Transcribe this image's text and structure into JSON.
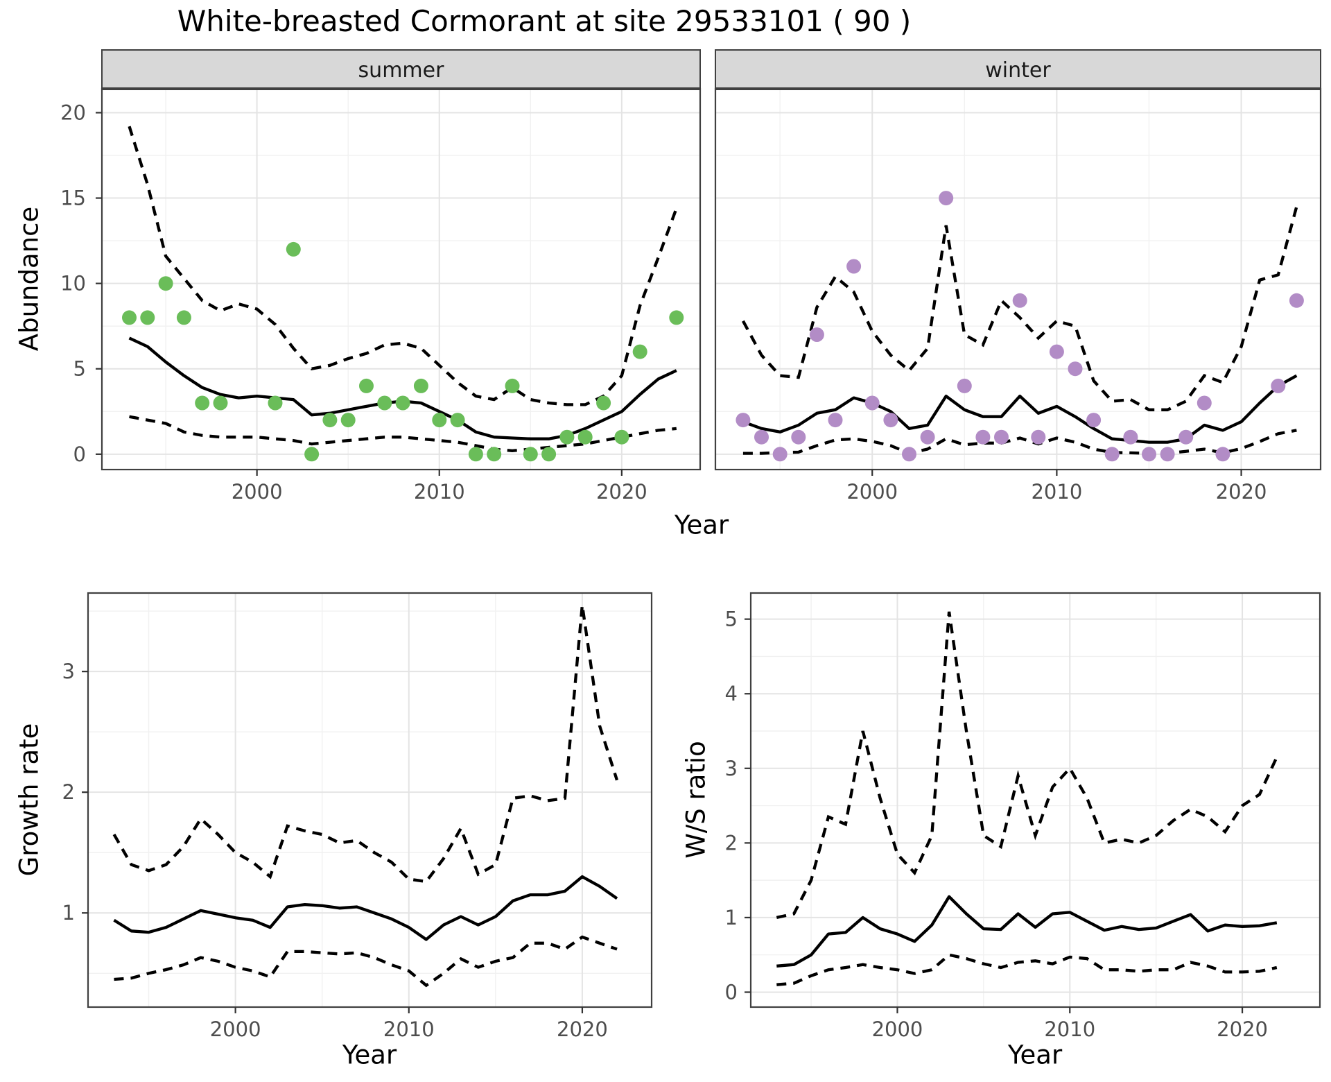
{
  "title": "White-breasted Cormorant at site 29533101 ( 90 )",
  "axis_labels": {
    "y_top": "Abundance",
    "x_top": "Year",
    "y_bottom_left": "Growth rate",
    "x_bottom_left": "Year",
    "y_bottom_right": "W/S ratio",
    "x_bottom_right": "Year"
  },
  "colors": {
    "summer_point": "#6abd59",
    "winter_point": "#b28cc6",
    "line": "#000000",
    "grid_major": "#e4e4e4",
    "grid_minor": "#f1f1f1",
    "strip_bg": "#d8d8d8",
    "strip_text": "#1a1a1a",
    "panel_border": "#404040",
    "tick_mark": "#333333",
    "tick_text": "#4d4d4d"
  },
  "chart_data": [
    {
      "id": "abundance-summer",
      "type": "line+scatter",
      "facet_label": "summer",
      "xlabel": "Year",
      "ylabel": "Abundance",
      "xlim": [
        1991.5,
        2024.3
      ],
      "ylim": [
        -0.9,
        21.4
      ],
      "x_ticks": [
        2000,
        2010,
        2020
      ],
      "y_ticks": [
        0,
        5,
        10,
        15,
        20
      ],
      "x_minor": [
        1995,
        2005,
        2015
      ],
      "y_minor": [
        2.5,
        7.5,
        12.5,
        17.5
      ],
      "year_start": 1993,
      "median": [
        6.8,
        6.3,
        5.4,
        4.6,
        3.9,
        3.5,
        3.3,
        3.4,
        3.3,
        3.2,
        2.3,
        2.4,
        2.6,
        2.8,
        3.0,
        3.1,
        3.0,
        2.5,
        2.0,
        1.3,
        1.0,
        0.95,
        0.9,
        0.9,
        1.1,
        1.5,
        2.0,
        2.5,
        3.5,
        4.4,
        4.9
      ],
      "upper": [
        19.2,
        15.8,
        11.6,
        10.3,
        9.0,
        8.4,
        8.8,
        8.5,
        7.6,
        6.2,
        5.0,
        5.2,
        5.6,
        5.9,
        6.4,
        6.5,
        6.2,
        5.2,
        4.2,
        3.4,
        3.2,
        3.9,
        3.2,
        3.0,
        2.9,
        2.9,
        3.4,
        4.6,
        8.7,
        11.5,
        14.4
      ],
      "lower": [
        2.2,
        2.0,
        1.8,
        1.3,
        1.1,
        1.0,
        1.0,
        1.0,
        0.9,
        0.8,
        0.6,
        0.7,
        0.8,
        0.9,
        1.0,
        1.0,
        0.9,
        0.8,
        0.7,
        0.5,
        0.3,
        0.2,
        0.3,
        0.4,
        0.5,
        0.6,
        0.8,
        1.0,
        1.2,
        1.4,
        1.5
      ],
      "points": {
        "years": [
          1993,
          1994,
          1995,
          1996,
          1997,
          1998,
          2001,
          2002,
          2003,
          2004,
          2005,
          2006,
          2007,
          2008,
          2009,
          2010,
          2011,
          2012,
          2013,
          2014,
          2015,
          2016,
          2017,
          2018,
          2019,
          2020,
          2021,
          2023
        ],
        "values": [
          8,
          8,
          10,
          8,
          3,
          3,
          3,
          12,
          0,
          2,
          2,
          4,
          3,
          3,
          4,
          2,
          2,
          0,
          0,
          4,
          0,
          0,
          1,
          1,
          3,
          1,
          6,
          8
        ],
        "color_key": "summer_point"
      }
    },
    {
      "id": "abundance-winter",
      "type": "line+scatter",
      "facet_label": "winter",
      "xlabel": "Year",
      "ylabel": "Abundance",
      "xlim": [
        1991.5,
        2024.3
      ],
      "ylim": [
        -0.9,
        21.4
      ],
      "x_ticks": [
        2000,
        2010,
        2020
      ],
      "y_ticks": [
        0,
        5,
        10,
        15,
        20
      ],
      "x_minor": [
        1995,
        2005,
        2015
      ],
      "y_minor": [
        2.5,
        7.5,
        12.5,
        17.5
      ],
      "year_start": 1993,
      "median": [
        1.9,
        1.5,
        1.3,
        1.7,
        2.4,
        2.6,
        3.3,
        3.0,
        2.5,
        1.5,
        1.7,
        3.4,
        2.6,
        2.2,
        2.2,
        3.4,
        2.4,
        2.8,
        2.2,
        1.5,
        0.9,
        0.8,
        0.7,
        0.7,
        0.9,
        1.7,
        1.4,
        1.9,
        3.0,
        4.0,
        4.6
      ],
      "upper": [
        7.8,
        5.8,
        4.6,
        4.5,
        8.6,
        10.4,
        9.5,
        7.2,
        5.8,
        4.9,
        6.2,
        13.4,
        7.0,
        6.4,
        9.0,
        8.0,
        6.8,
        7.8,
        7.5,
        4.3,
        3.1,
        3.2,
        2.6,
        2.6,
        3.1,
        4.6,
        4.2,
        6.3,
        10.2,
        10.5,
        14.5
      ],
      "lower": [
        0.05,
        0.05,
        0.1,
        0.12,
        0.5,
        0.83,
        0.9,
        0.75,
        0.5,
        0.05,
        0.3,
        0.9,
        0.55,
        0.65,
        0.65,
        0.95,
        0.6,
        0.95,
        0.7,
        0.3,
        0.1,
        0.08,
        0.05,
        0.05,
        0.17,
        0.3,
        0.08,
        0.33,
        0.74,
        1.2,
        1.4
      ],
      "points": {
        "years": [
          1993,
          1994,
          1995,
          1996,
          1997,
          1998,
          1999,
          2000,
          2001,
          2002,
          2003,
          2004,
          2005,
          2006,
          2007,
          2008,
          2009,
          2010,
          2011,
          2012,
          2013,
          2014,
          2015,
          2016,
          2017,
          2018,
          2019,
          2022,
          2023
        ],
        "values": [
          2,
          1,
          0,
          1,
          7,
          2,
          11,
          3,
          2,
          0,
          1,
          15,
          4,
          1,
          1,
          9,
          1,
          6,
          5,
          2,
          0,
          1,
          0,
          0,
          1,
          3,
          0,
          4,
          9
        ],
        "color_key": "winter_point"
      }
    },
    {
      "id": "growth-rate",
      "type": "line",
      "facet_label": null,
      "xlabel": "Year",
      "ylabel": "Growth rate",
      "xlim": [
        1991.5,
        2024.0
      ],
      "ylim": [
        0.22,
        3.65
      ],
      "x_ticks": [
        2000,
        2010,
        2020
      ],
      "y_ticks": [
        1,
        2,
        3
      ],
      "x_minor": [
        1995,
        2005,
        2015
      ],
      "y_minor": [
        0.5,
        1.5,
        2.5,
        3.5
      ],
      "year_start": 1993,
      "median": [
        0.94,
        0.85,
        0.84,
        0.88,
        0.95,
        1.02,
        0.99,
        0.96,
        0.94,
        0.88,
        1.05,
        1.07,
        1.06,
        1.04,
        1.05,
        1.0,
        0.95,
        0.88,
        0.78,
        0.9,
        0.97,
        0.9,
        0.97,
        1.1,
        1.15,
        1.15,
        1.18,
        1.3,
        1.22,
        1.12
      ],
      "upper": [
        1.65,
        1.4,
        1.35,
        1.4,
        1.55,
        1.78,
        1.65,
        1.5,
        1.42,
        1.3,
        1.72,
        1.68,
        1.65,
        1.58,
        1.6,
        1.5,
        1.42,
        1.28,
        1.26,
        1.45,
        1.7,
        1.32,
        1.4,
        1.95,
        1.97,
        1.93,
        1.95,
        3.55,
        2.55,
        2.1
      ],
      "lower": [
        0.45,
        0.46,
        0.5,
        0.53,
        0.57,
        0.63,
        0.6,
        0.55,
        0.52,
        0.47,
        0.68,
        0.68,
        0.67,
        0.66,
        0.67,
        0.63,
        0.57,
        0.52,
        0.4,
        0.5,
        0.62,
        0.55,
        0.6,
        0.63,
        0.75,
        0.75,
        0.7,
        0.8,
        0.75,
        0.7
      ],
      "points": null
    },
    {
      "id": "ws-ratio",
      "type": "line",
      "facet_label": null,
      "xlabel": "Year",
      "ylabel": "W/S ratio",
      "xlim": [
        1991.5,
        2024.5
      ],
      "ylim": [
        -0.2,
        5.35
      ],
      "x_ticks": [
        2000,
        2010,
        2020
      ],
      "y_ticks": [
        0,
        1,
        2,
        3,
        4,
        5
      ],
      "x_minor": [
        1995,
        2005,
        2015
      ],
      "y_minor": [
        0.5,
        1.5,
        2.5,
        3.5,
        4.5
      ],
      "year_start": 1993,
      "median": [
        0.35,
        0.37,
        0.5,
        0.78,
        0.8,
        1.0,
        0.85,
        0.78,
        0.68,
        0.9,
        1.28,
        1.05,
        0.85,
        0.84,
        1.05,
        0.87,
        1.05,
        1.07,
        0.95,
        0.83,
        0.88,
        0.84,
        0.86,
        0.95,
        1.04,
        0.82,
        0.9,
        0.88,
        0.89,
        0.93
      ],
      "upper": [
        1.0,
        1.05,
        1.5,
        2.35,
        2.25,
        3.5,
        2.6,
        1.85,
        1.6,
        2.1,
        5.1,
        3.5,
        2.1,
        1.95,
        2.9,
        2.1,
        2.75,
        3.0,
        2.6,
        2.0,
        2.05,
        2.0,
        2.1,
        2.3,
        2.45,
        2.35,
        2.15,
        2.5,
        2.65,
        3.15
      ],
      "lower": [
        0.1,
        0.12,
        0.22,
        0.3,
        0.33,
        0.37,
        0.33,
        0.3,
        0.25,
        0.3,
        0.5,
        0.45,
        0.38,
        0.33,
        0.4,
        0.42,
        0.38,
        0.47,
        0.45,
        0.3,
        0.3,
        0.28,
        0.3,
        0.3,
        0.4,
        0.35,
        0.27,
        0.27,
        0.28,
        0.33
      ],
      "points": null
    }
  ]
}
